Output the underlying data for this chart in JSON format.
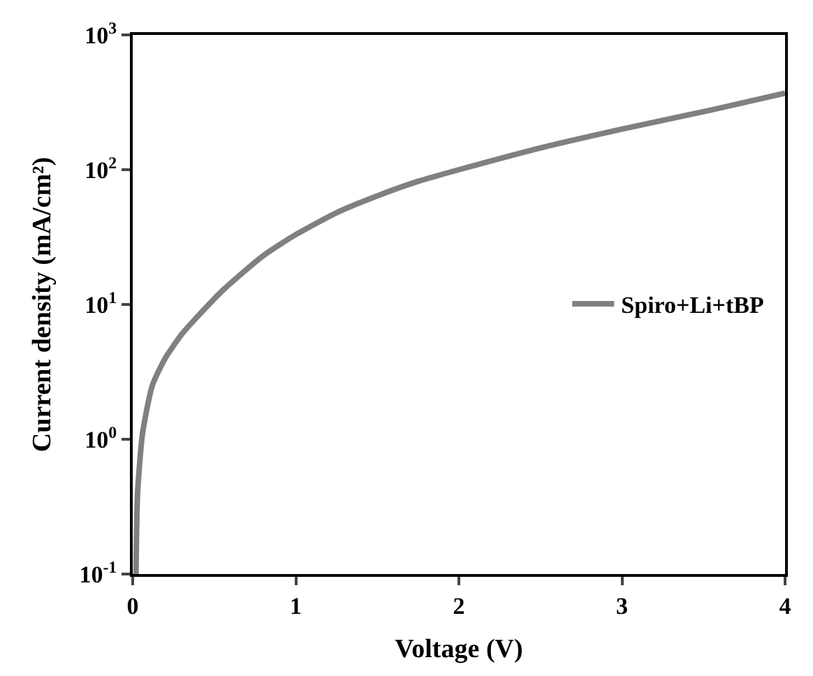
{
  "chart_data": {
    "type": "line",
    "xlabel": "Voltage (V)",
    "ylabel": "Current density (mA/cm²)",
    "log": "y",
    "xlim": [
      0,
      4
    ],
    "xticks": [
      0,
      1,
      2,
      3,
      4
    ],
    "ylim": [
      0.1,
      1000
    ],
    "yticks": [
      {
        "value": 0.1,
        "label": "10$^{-1}$"
      },
      {
        "value": 1,
        "label": "10$^{0}$"
      },
      {
        "value": 10,
        "label": "10$^{1}$"
      },
      {
        "value": 100,
        "label": "10$^{2}$"
      },
      {
        "value": 1000,
        "label": "10$^{3}$"
      }
    ],
    "legend": "right",
    "series": [
      {
        "name": "Spiro+Li+tBP",
        "color": "#808080",
        "x": [
          0.02,
          0.03,
          0.06,
          0.12,
          0.2,
          0.3,
          0.4,
          0.56,
          0.8,
          1.0,
          1.25,
          1.5,
          1.75,
          2.0,
          2.5,
          3.0,
          3.54,
          4.0
        ],
        "values": [
          0.1,
          0.4,
          1.1,
          2.5,
          4.0,
          6.0,
          8.2,
          13,
          23,
          33,
          48,
          64,
          82,
          100,
          145,
          200,
          276,
          370
        ]
      }
    ]
  }
}
